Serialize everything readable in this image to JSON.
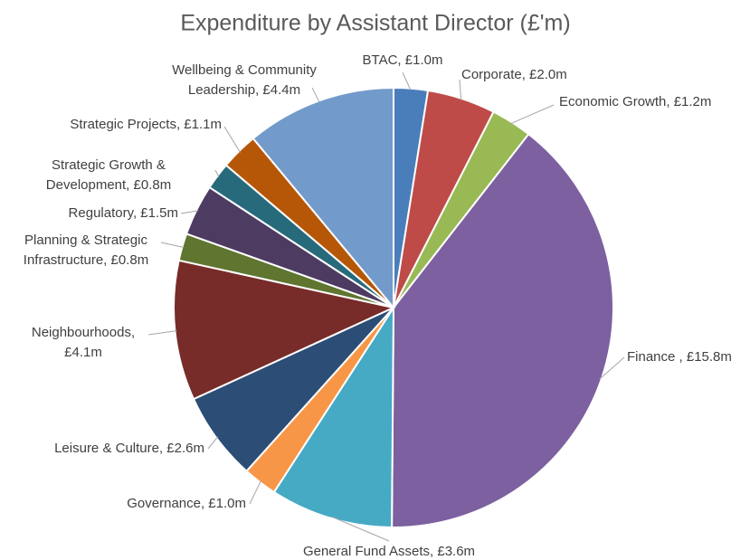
{
  "chart_data": {
    "type": "pie",
    "title": "Expenditure by Assistant Director (£'m)",
    "values": [
      1.0,
      2.0,
      1.2,
      15.8,
      3.6,
      1.0,
      2.6,
      4.1,
      0.8,
      1.5,
      0.8,
      1.1,
      4.4
    ],
    "value_labels": [
      [
        "BTAC, £1.0m"
      ],
      [
        "Corporate, £2.0m"
      ],
      [
        "Economic Growth, £1.2m"
      ],
      [
        "Finance , £15.8m"
      ],
      [
        "General Fund Assets, £3.6m"
      ],
      [
        "Governance, £1.0m"
      ],
      [
        "Leisure & Culture, £2.6m"
      ],
      [
        "Neighbourhoods,",
        "£4.1m"
      ],
      [
        "Planning & Strategic",
        "Infrastructure, £0.8m"
      ],
      [
        "Regulatory, £1.5m"
      ],
      [
        "Strategic Growth &",
        "Development, £0.8m"
      ],
      [
        "Strategic Projects, £1.1m"
      ],
      [
        "Wellbeing & Community",
        "Leadership, £4.4m"
      ]
    ],
    "colors": [
      "#4a7ebb",
      "#be4b48",
      "#98b954",
      "#7d60a0",
      "#46aac5",
      "#f79646",
      "#2c4d75",
      "#772c2a",
      "#5f7530",
      "#4d3b62",
      "#276a7c",
      "#b65708",
      "#729aca"
    ]
  }
}
